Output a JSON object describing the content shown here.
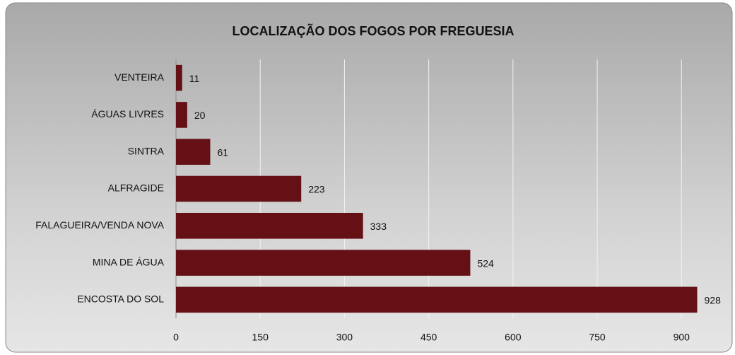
{
  "chart_data": {
    "type": "bar",
    "orientation": "horizontal",
    "title": "LOCALIZAÇÃO DOS FOGOS POR FREGUESIA",
    "categories": [
      "VENTEIRA",
      "ÁGUAS LIVRES",
      "SINTRA",
      "ALFRAGIDE",
      "FALAGUEIRA/VENDA NOVA",
      "MINA DE ÁGUA",
      "ENCOSTA DO SOL"
    ],
    "values": [
      11,
      20,
      61,
      223,
      333,
      524,
      928
    ],
    "color": "#641015",
    "xlim": [
      0,
      950
    ],
    "xticks": [
      0,
      150,
      300,
      450,
      600,
      750,
      900
    ],
    "grid": true
  }
}
